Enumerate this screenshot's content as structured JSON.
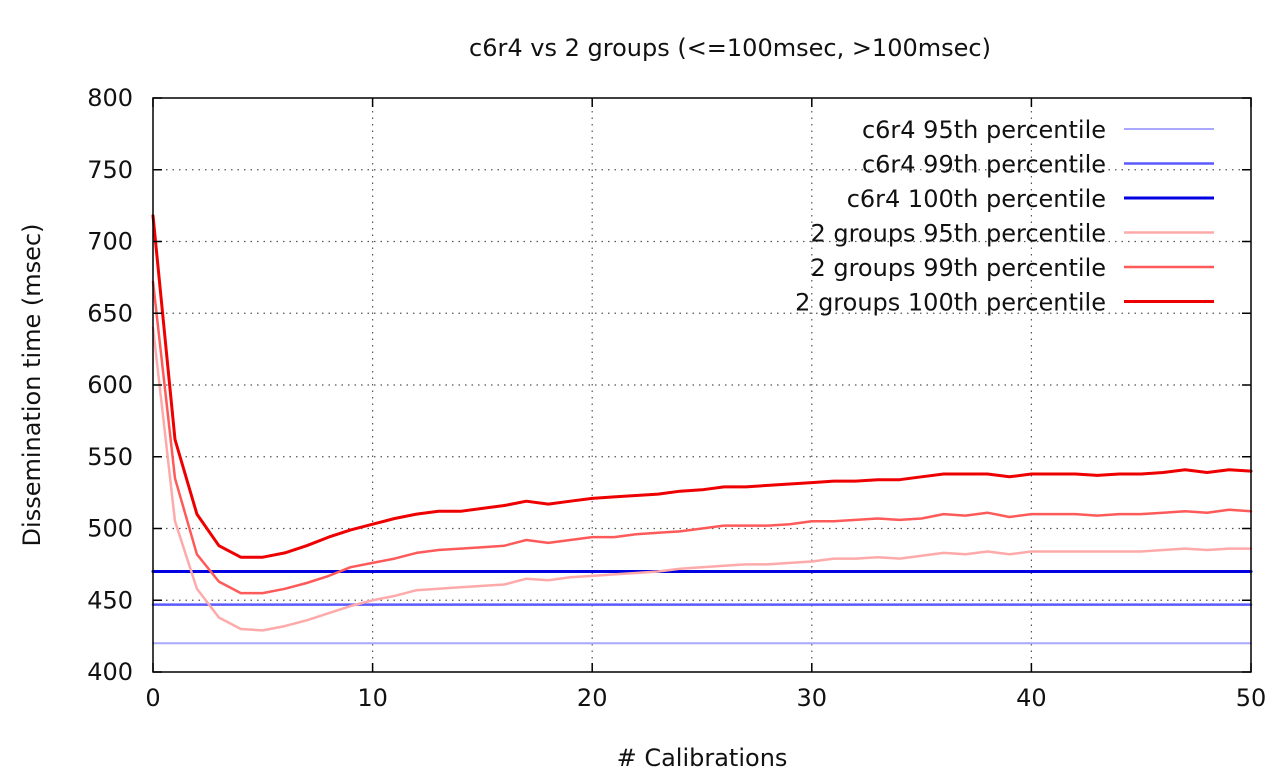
{
  "chart_data": {
    "type": "line",
    "title": "c6r4 vs 2 groups (<=100msec, >100msec)",
    "xlabel": "# Calibrations",
    "ylabel": "Dissemination time (msec)",
    "xlim": [
      0,
      50
    ],
    "ylim": [
      400,
      800
    ],
    "x_ticks": [
      "0",
      "10",
      "20",
      "30",
      "40",
      "50"
    ],
    "y_ticks": [
      "400",
      "450",
      "500",
      "550",
      "600",
      "650",
      "700",
      "750",
      "800"
    ],
    "grid": true,
    "legend_position": "top-right",
    "series": [
      {
        "name": "c6r4  95th percentile",
        "color": "#a8a8ff",
        "x": [
          0,
          50
        ],
        "values": [
          420,
          420
        ]
      },
      {
        "name": "c6r4  99th percentile",
        "color": "#5a5aff",
        "x": [
          0,
          50
        ],
        "values": [
          447,
          447
        ]
      },
      {
        "name": "c6r4 100th percentile",
        "color": "#0000e0",
        "x": [
          0,
          50
        ],
        "values": [
          470,
          470
        ]
      },
      {
        "name": "2 groups  95th percentile",
        "color": "#ffaaaa",
        "x": [
          0,
          1,
          2,
          3,
          4,
          5,
          6,
          7,
          8,
          9,
          10,
          11,
          12,
          13,
          14,
          15,
          16,
          17,
          18,
          19,
          20,
          21,
          22,
          23,
          24,
          25,
          26,
          27,
          28,
          29,
          30,
          31,
          32,
          33,
          34,
          35,
          36,
          37,
          38,
          39,
          40,
          41,
          42,
          43,
          44,
          45,
          46,
          47,
          48,
          49,
          50
        ],
        "values": [
          640,
          505,
          458,
          438,
          430,
          429,
          432,
          436,
          441,
          446,
          450,
          453,
          457,
          458,
          459,
          460,
          461,
          465,
          464,
          466,
          467,
          468,
          469,
          470,
          472,
          473,
          474,
          475,
          475,
          476,
          477,
          479,
          479,
          480,
          479,
          481,
          483,
          482,
          484,
          482,
          484,
          484,
          484,
          484,
          484,
          484,
          485,
          486,
          485,
          486,
          486
        ]
      },
      {
        "name": "2 groups  99th percentile",
        "color": "#ff5a5a",
        "x": [
          0,
          1,
          2,
          3,
          4,
          5,
          6,
          7,
          8,
          9,
          10,
          11,
          12,
          13,
          14,
          15,
          16,
          17,
          18,
          19,
          20,
          21,
          22,
          23,
          24,
          25,
          26,
          27,
          28,
          29,
          30,
          31,
          32,
          33,
          34,
          35,
          36,
          37,
          38,
          39,
          40,
          41,
          42,
          43,
          44,
          45,
          46,
          47,
          48,
          49,
          50
        ],
        "values": [
          672,
          535,
          482,
          463,
          455,
          455,
          458,
          462,
          467,
          473,
          476,
          479,
          483,
          485,
          486,
          487,
          488,
          492,
          490,
          492,
          494,
          494,
          496,
          497,
          498,
          500,
          502,
          502,
          502,
          503,
          505,
          505,
          506,
          507,
          506,
          507,
          510,
          509,
          511,
          508,
          510,
          510,
          510,
          509,
          510,
          510,
          511,
          512,
          511,
          513,
          512
        ]
      },
      {
        "name": "2 groups 100th percentile",
        "color": "#ee0000",
        "x": [
          0,
          1,
          2,
          3,
          4,
          5,
          6,
          7,
          8,
          9,
          10,
          11,
          12,
          13,
          14,
          15,
          16,
          17,
          18,
          19,
          20,
          21,
          22,
          23,
          24,
          25,
          26,
          27,
          28,
          29,
          30,
          31,
          32,
          33,
          34,
          35,
          36,
          37,
          38,
          39,
          40,
          41,
          42,
          43,
          44,
          45,
          46,
          47,
          48,
          49,
          50
        ],
        "values": [
          718,
          562,
          510,
          488,
          480,
          480,
          483,
          488,
          494,
          499,
          503,
          507,
          510,
          512,
          512,
          514,
          516,
          519,
          517,
          519,
          521,
          522,
          523,
          524,
          526,
          527,
          529,
          529,
          530,
          531,
          532,
          533,
          533,
          534,
          534,
          536,
          538,
          538,
          538,
          536,
          538,
          538,
          538,
          537,
          538,
          538,
          539,
          541,
          539,
          541,
          540
        ]
      }
    ]
  }
}
